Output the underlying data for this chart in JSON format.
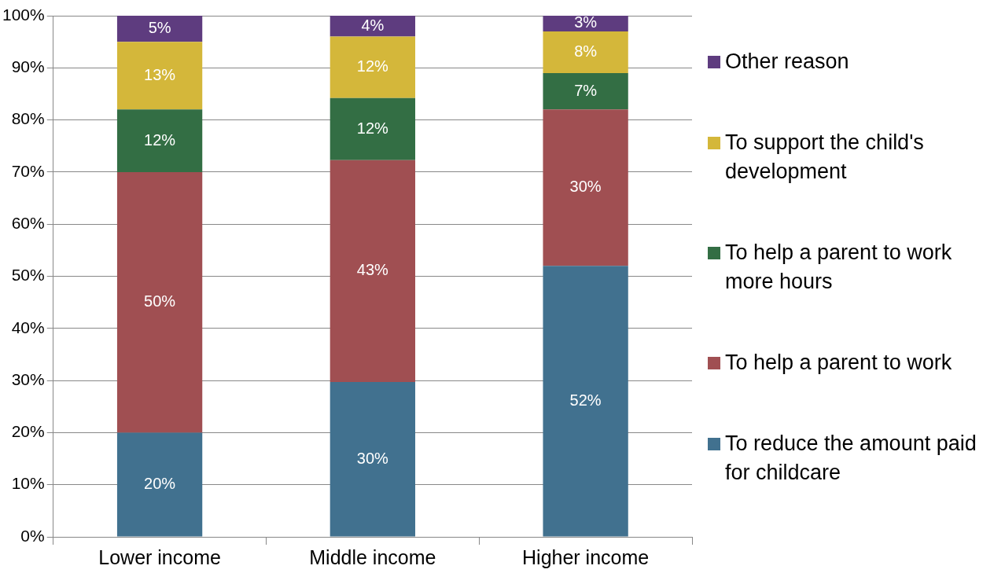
{
  "chart_data": {
    "type": "bar",
    "stacked": true,
    "categories": [
      "Lower income",
      "Middle income",
      "Higher income"
    ],
    "series": [
      {
        "name": "To reduce the amount paid for childcare",
        "color": "#41718f",
        "values": [
          20,
          29.7,
          52
        ],
        "value_labels": [
          "20%",
          "30%",
          "52%"
        ]
      },
      {
        "name": "To help a parent to work",
        "color": "#a04f52",
        "values": [
          50,
          42.6,
          30
        ],
        "value_labels": [
          "50%",
          "43%",
          "30%"
        ]
      },
      {
        "name": "To help a parent to work more hours",
        "color": "#336e44",
        "values": [
          12,
          11.9,
          7
        ],
        "value_labels": [
          "12%",
          "12%",
          "7%"
        ]
      },
      {
        "name": "To support the child's development",
        "color": "#d4b73a",
        "values": [
          13,
          11.8,
          8
        ],
        "value_labels": [
          "13%",
          "12%",
          "8%"
        ]
      },
      {
        "name": "Other reason",
        "color": "#5e3c7f",
        "values": [
          5,
          4,
          3
        ],
        "value_labels": [
          "5%",
          "4%",
          "3%"
        ]
      }
    ],
    "ylim": [
      0,
      100
    ],
    "yticks": [
      {
        "value": 0,
        "label": "0%"
      },
      {
        "value": 10,
        "label": "10%"
      },
      {
        "value": 20,
        "label": "20%"
      },
      {
        "value": 30,
        "label": "30%"
      },
      {
        "value": 40,
        "label": "40%"
      },
      {
        "value": 50,
        "label": "50%"
      },
      {
        "value": 60,
        "label": "60%"
      },
      {
        "value": 70,
        "label": "70%"
      },
      {
        "value": 80,
        "label": "80%"
      },
      {
        "value": 90,
        "label": "90%"
      },
      {
        "value": 100,
        "label": "100%"
      }
    ],
    "grid": "y",
    "legend": "right"
  }
}
